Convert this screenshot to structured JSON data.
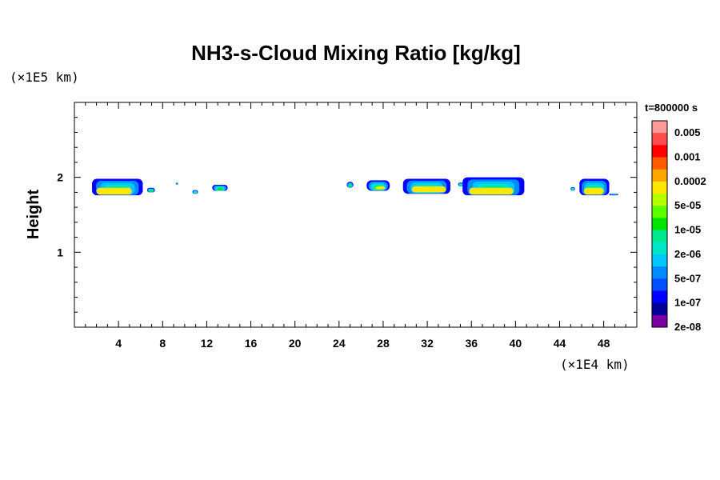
{
  "chart_data": {
    "type": "heatmap",
    "title": "NH3-s-Cloud Mixing Ratio [kg/kg]",
    "ylabel": "Height",
    "xlabel": "",
    "x_unit": "(×1E4 km)",
    "y_unit": "(×1E5 km)",
    "time_label": "t=800000 s",
    "xlim": [
      0,
      51
    ],
    "ylim": [
      0,
      3
    ],
    "x_ticks": [
      4,
      8,
      12,
      16,
      20,
      24,
      28,
      32,
      36,
      40,
      44,
      48
    ],
    "x_tick_labels": [
      "4",
      "8",
      "12",
      "16",
      "20",
      "24",
      "28",
      "32",
      "36",
      "40",
      "44",
      "48"
    ],
    "y_ticks": [
      1,
      2
    ],
    "y_tick_labels": [
      "1",
      "2"
    ],
    "colorbar": {
      "labels": [
        "0.005",
        "0.001",
        "0.0002",
        "5e-05",
        "1e-05",
        "2e-06",
        "5e-07",
        "1e-07",
        "2e-08"
      ],
      "colors": [
        "#ff9a9a",
        "#ff4d4d",
        "#ff0000",
        "#ff5a00",
        "#ffa500",
        "#ffe600",
        "#b4ff00",
        "#5aff00",
        "#00e400",
        "#00e88c",
        "#00e6c8",
        "#00c8ff",
        "#008cff",
        "#0050ff",
        "#0000ff",
        "#000096",
        "#7800a0"
      ]
    },
    "cloud_patches": [
      {
        "x": [
          1.6,
          6.2
        ],
        "z": [
          1.76,
          1.98
        ],
        "core": [
          2.0,
          5.2
        ],
        "core_z": [
          1.77,
          1.86
        ]
      },
      {
        "x": [
          6.6,
          7.3
        ],
        "z": [
          1.8,
          1.86
        ],
        "core": null,
        "core_z": null
      },
      {
        "x": [
          9.2,
          9.4
        ],
        "z": [
          1.9,
          1.93
        ],
        "core": null,
        "core_z": null
      },
      {
        "x": [
          10.7,
          11.2
        ],
        "z": [
          1.78,
          1.83
        ],
        "core": null,
        "core_z": null
      },
      {
        "x": [
          12.5,
          13.9
        ],
        "z": [
          1.82,
          1.9
        ],
        "core": null,
        "core_z": null
      },
      {
        "x": [
          24.7,
          25.3
        ],
        "z": [
          1.86,
          1.94
        ],
        "core": null,
        "core_z": null
      },
      {
        "x": [
          26.5,
          28.6
        ],
        "z": [
          1.82,
          1.96
        ],
        "core": [
          27.3,
          28.2
        ],
        "core_z": [
          1.84,
          1.88
        ]
      },
      {
        "x": [
          29.8,
          34.1
        ],
        "z": [
          1.78,
          1.98
        ],
        "core": [
          30.6,
          33.7
        ],
        "core_z": [
          1.8,
          1.88
        ]
      },
      {
        "x": [
          34.8,
          35.3
        ],
        "z": [
          1.88,
          1.93
        ],
        "core": null,
        "core_z": null
      },
      {
        "x": [
          35.2,
          40.8
        ],
        "z": [
          1.76,
          2.0
        ],
        "core": [
          35.8,
          39.8
        ],
        "core_z": [
          1.77,
          1.86
        ]
      },
      {
        "x": [
          45.0,
          45.4
        ],
        "z": [
          1.82,
          1.87
        ],
        "core": null,
        "core_z": null
      },
      {
        "x": [
          45.8,
          48.5
        ],
        "z": [
          1.76,
          1.98
        ],
        "core": [
          46.2,
          48.0
        ],
        "core_z": [
          1.77,
          1.86
        ]
      },
      {
        "x": [
          48.5,
          49.3
        ],
        "z": [
          1.76,
          1.78
        ],
        "core": null,
        "core_z": null
      }
    ]
  }
}
